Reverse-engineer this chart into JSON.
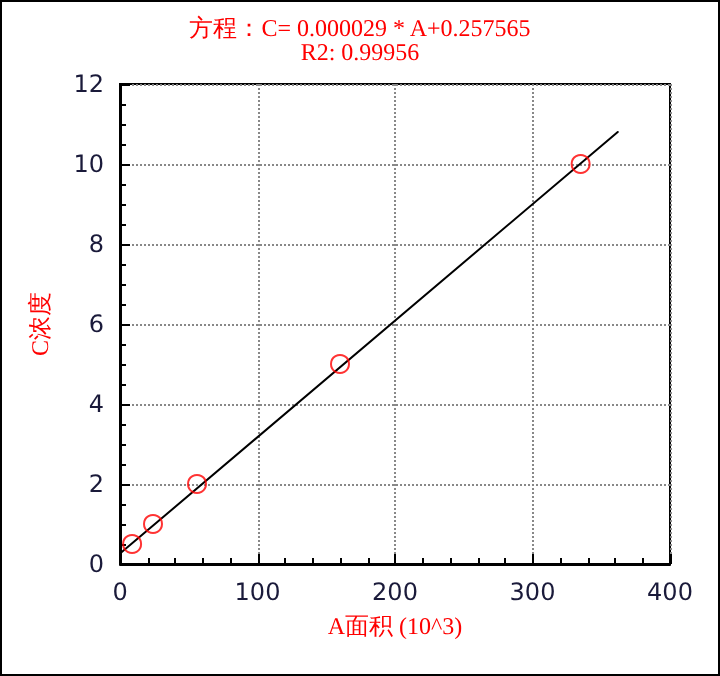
{
  "chart_data": {
    "type": "scatter",
    "title": "方程：C= 0.000029 * A+0.257565",
    "subtitle": "R2: 0.99956",
    "xlabel": "A面积 (10^3)",
    "ylabel": "C浓度",
    "xlim": [
      0,
      400
    ],
    "xticks": [
      0,
      100,
      200,
      300,
      400
    ],
    "ylim": [
      0,
      12
    ],
    "yticks": [
      0,
      2,
      4,
      6,
      8,
      10,
      12
    ],
    "grid": true,
    "series": [
      {
        "color": "#ff0000",
        "marker": "circle",
        "x": [
          8.8,
          24,
          56,
          160,
          335
        ],
        "values": [
          0.5,
          1.0,
          2.0,
          5.0,
          10.0
        ]
      },
      {
        "type": "line",
        "color": "#000000",
        "marker": "none",
        "line_style": "solid",
        "x": [
          0,
          362
        ],
        "values": [
          0.26,
          10.8
        ]
      }
    ]
  }
}
